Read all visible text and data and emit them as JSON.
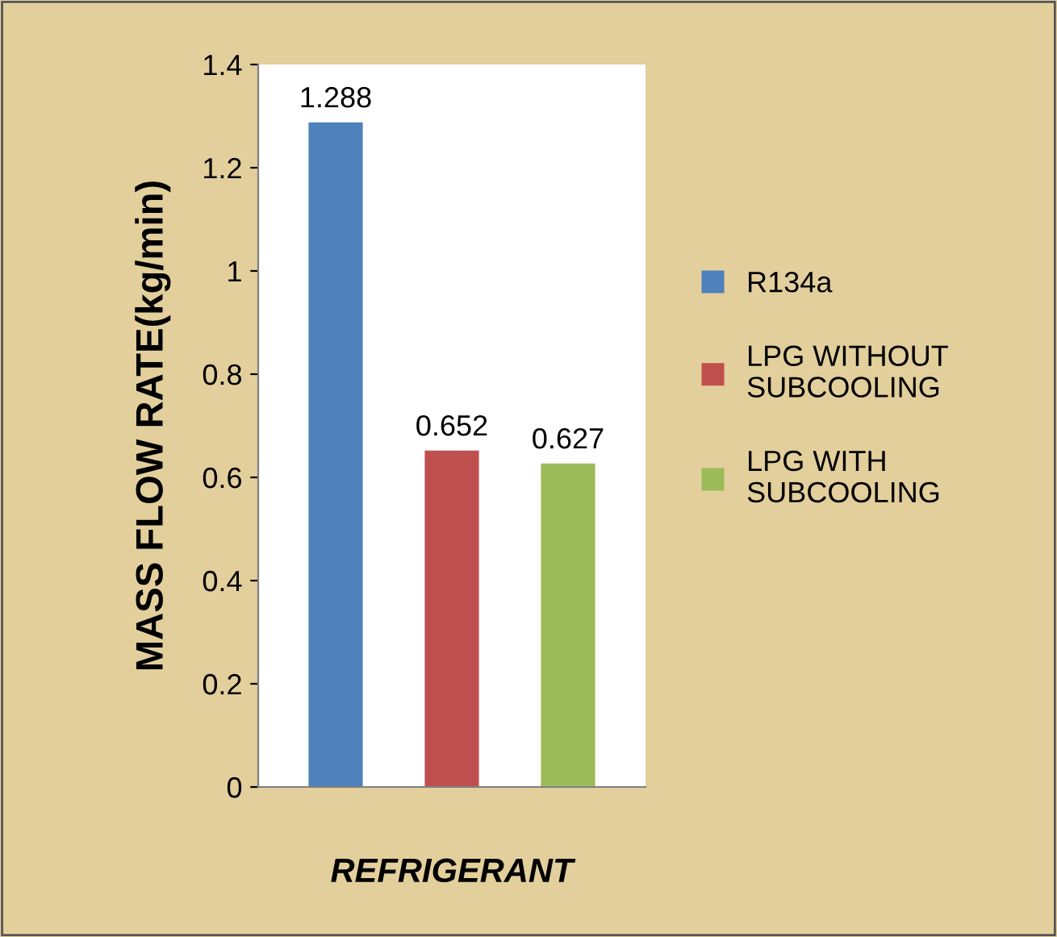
{
  "chart_data": {
    "type": "bar",
    "categories": [
      null
    ],
    "ylabel": "MASS FLOW RATE(kg/min)",
    "xlabel": "REFRIGERANT",
    "series": [
      {
        "name": "R134a",
        "color": "#4f81bd",
        "values": [
          1.288
        ]
      },
      {
        "name": "LPG WITHOUT SUBCOOLING",
        "color": "#c0504d",
        "values": [
          0.652
        ]
      },
      {
        "name": "LPG WITH SUBCOOLING",
        "color": "#9bbb59",
        "values": [
          0.627
        ]
      }
    ],
    "ylim": [
      0,
      1.4
    ],
    "yticks": [
      0,
      0.2,
      0.4,
      0.6,
      0.8,
      1,
      1.2,
      1.4
    ],
    "grid": false,
    "legend": "right",
    "data_labels": true
  }
}
